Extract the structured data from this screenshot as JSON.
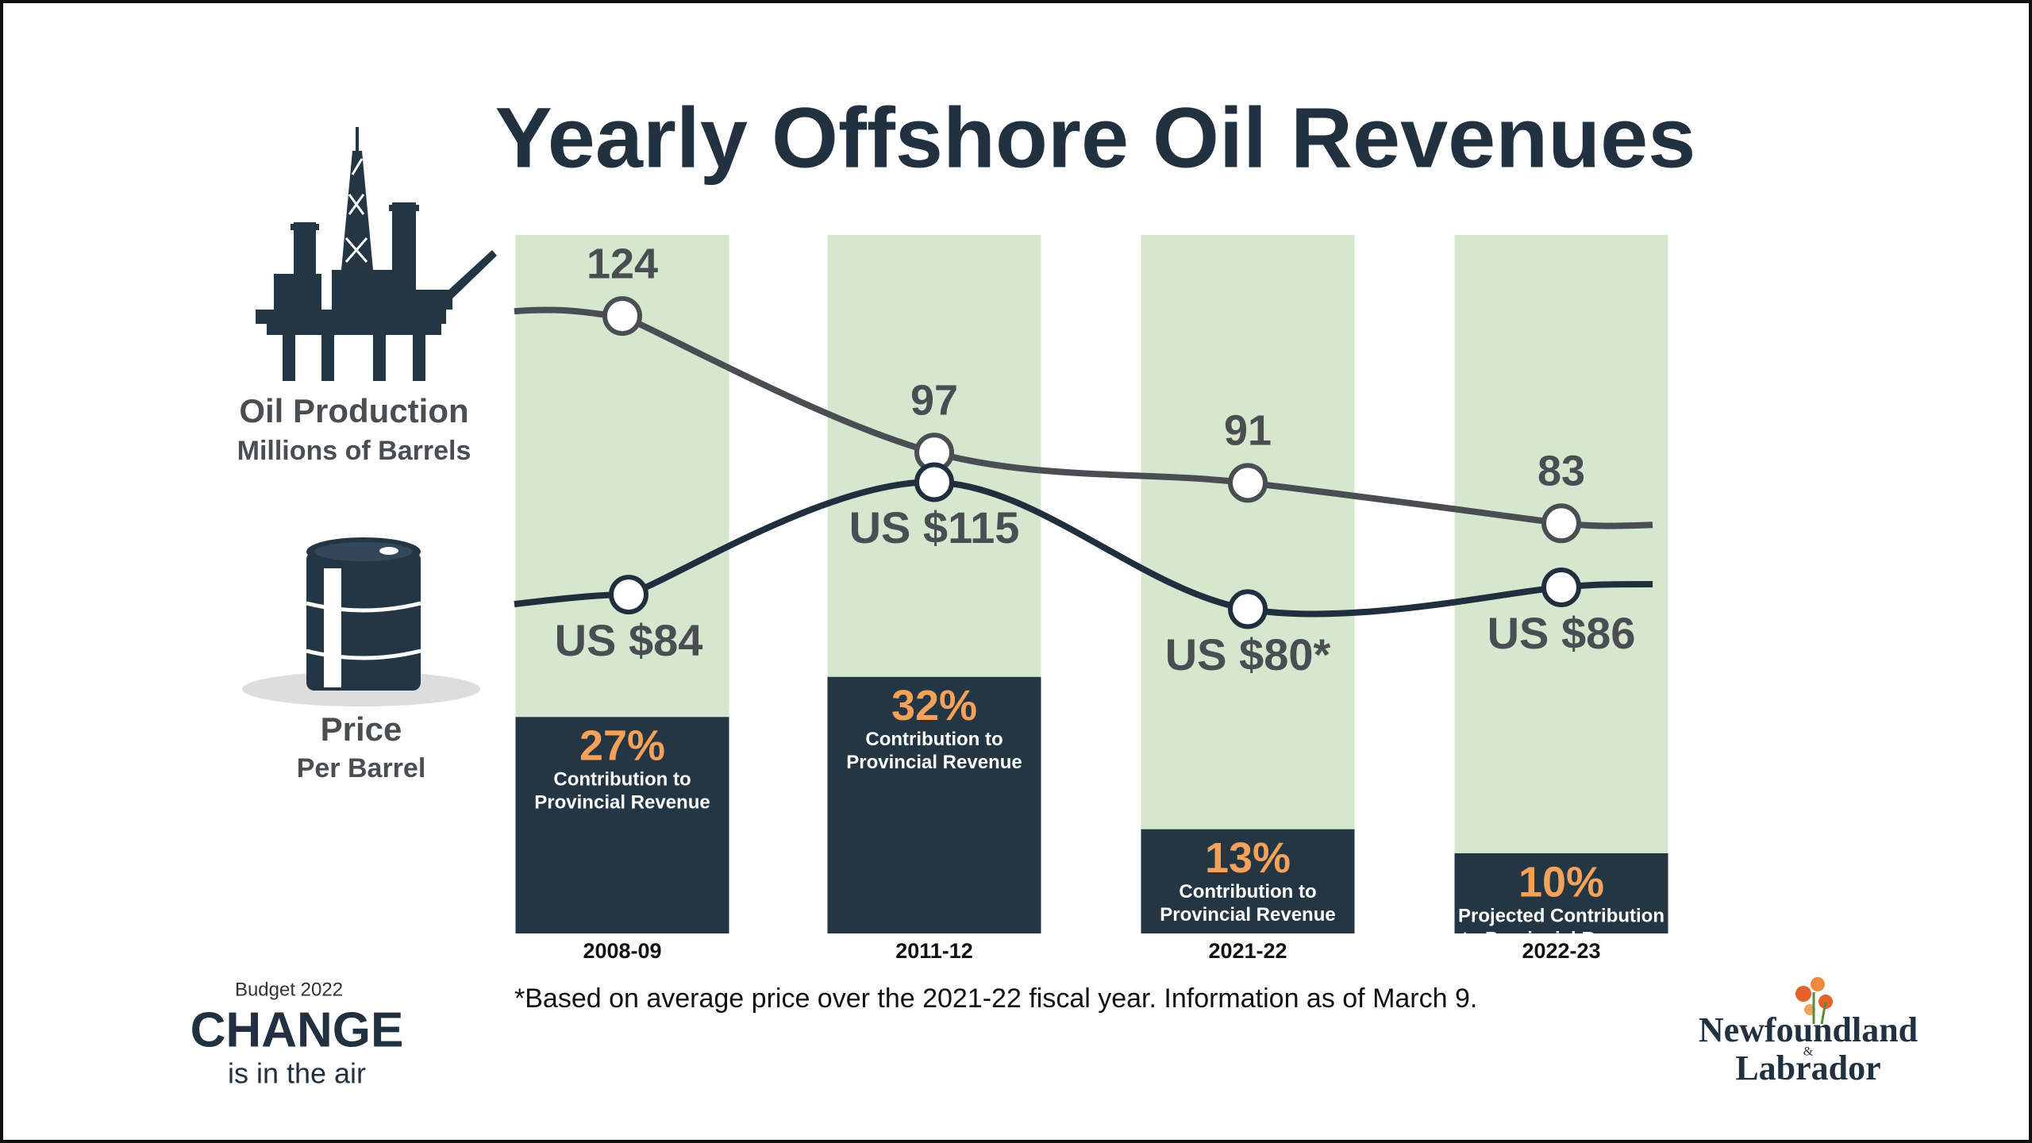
{
  "chart_data": {
    "type": "bar-line",
    "title": "Yearly Offshore Oil Revenues",
    "categories": [
      "2008-09",
      "2011-12",
      "2021-22",
      "2022-23"
    ],
    "series": [
      {
        "name": "Contribution to Provincial Revenue",
        "color": "#243544",
        "label_color": "#f4a15a",
        "background_color": "#d5e8cf",
        "values": [
          27,
          32,
          13,
          10
        ],
        "value_labels": [
          "27%",
          "32%",
          "13%",
          "10%"
        ],
        "captions": [
          [
            "Contribution to",
            "Provincial Revenue"
          ],
          [
            "Contribution to",
            "Provincial Revenue"
          ],
          [
            "Contribution to",
            "Provincial Revenue"
          ],
          [
            "Projected Contribution",
            "to Provincial Revenue"
          ]
        ]
      },
      {
        "name": "Oil Production",
        "unit": "Millions of Barrels",
        "color": "#4a4e52",
        "values": [
          124,
          97,
          91,
          83
        ]
      },
      {
        "name": "Price",
        "unit": "Per Barrel",
        "color": "#1f2f3d",
        "values": [
          84,
          115,
          80,
          86
        ],
        "value_labels": [
          "US $84",
          "US $115",
          "US $80*",
          "US $86"
        ]
      }
    ],
    "footnote": "*Based on average price over the 2021-22 fiscal year.  Information as of March 9.",
    "branding": {
      "budget": "Budget 2022",
      "slogan": "CHANGE",
      "tagline": "is in the air"
    },
    "logo": {
      "line1": "Newfoundland",
      "ampersand": "&",
      "line2": "Labrador"
    }
  }
}
